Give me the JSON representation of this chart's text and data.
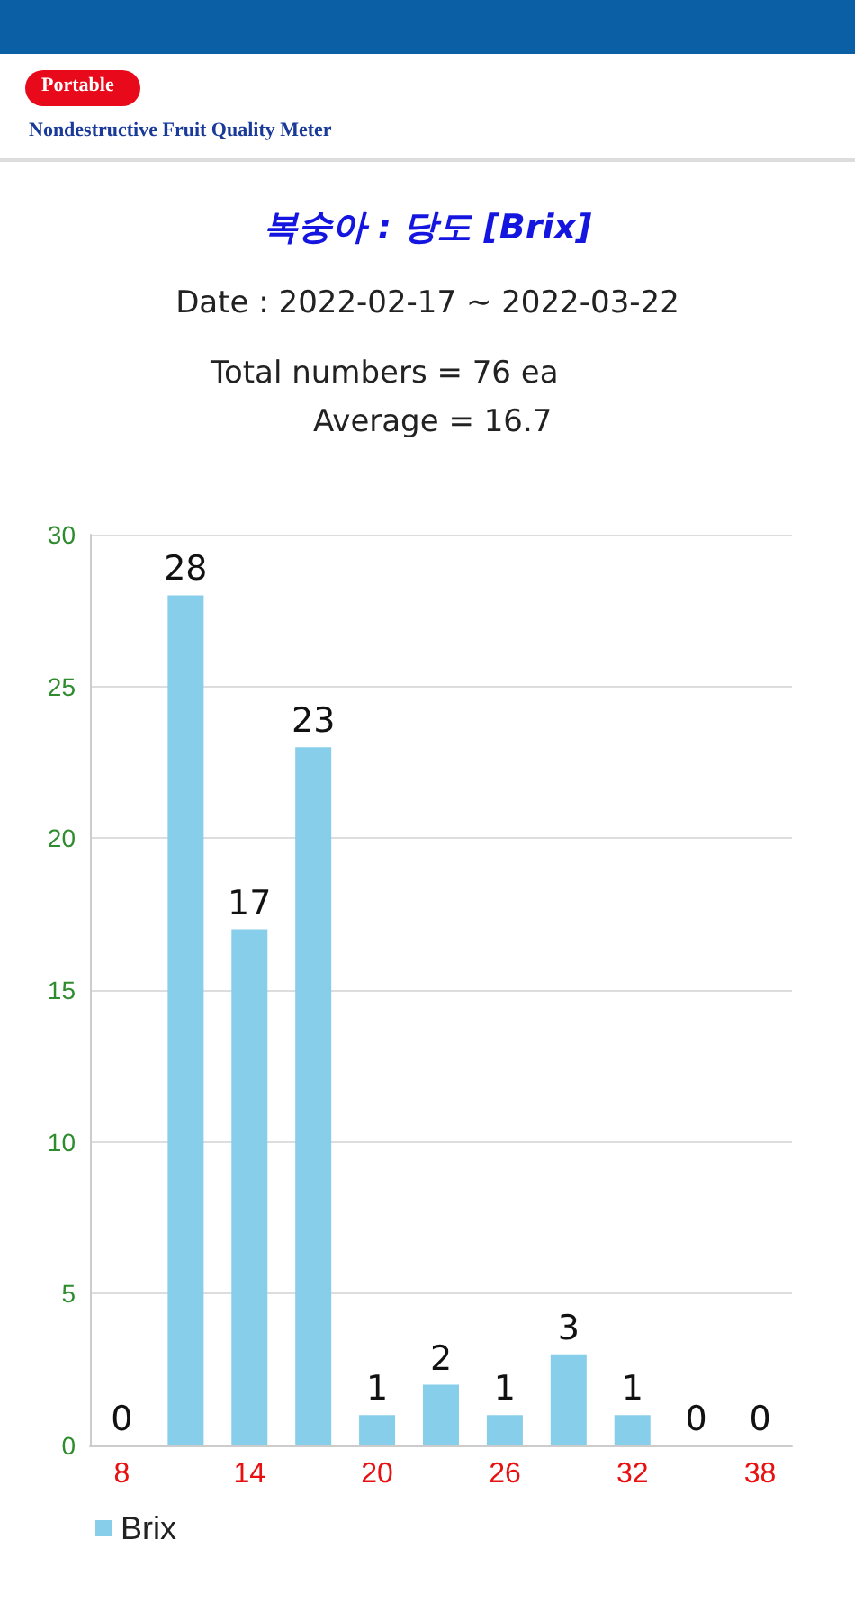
{
  "chart_data": {
    "type": "bar",
    "title": "복숭아 : 당도 [Brix]",
    "subtitle": "Date : 2022-02-17 ~ 2022-03-22",
    "annotations": [
      "Portable",
      "Nondestructive Fruit Quality Meter",
      "Total numbers = 76 ea",
      "Average = 16.7"
    ],
    "categories": [
      "8",
      null,
      "14",
      null,
      "20",
      null,
      "26",
      null,
      "32",
      null,
      "38"
    ],
    "series": [
      {
        "name": "Brix",
        "color": "#87ceeb",
        "values": [
          0,
          28,
          17,
          23,
          1,
          2,
          1,
          3,
          1,
          0,
          0
        ]
      }
    ],
    "ylim": [
      0,
      30
    ],
    "yticks": [
      0,
      5,
      10,
      15,
      20,
      25,
      30
    ],
    "grid": "y",
    "legend": "bottom left",
    "data_labels": true
  }
}
